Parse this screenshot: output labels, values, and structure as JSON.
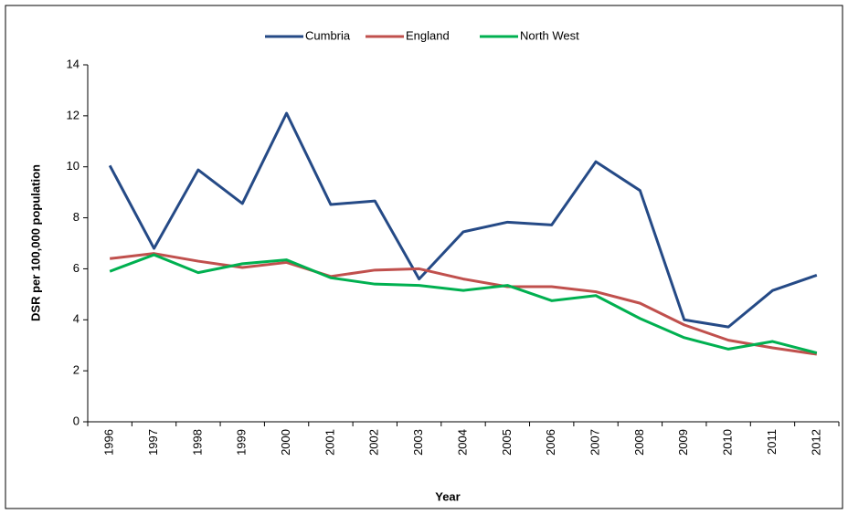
{
  "chart_data": {
    "type": "line",
    "x_label": "Year",
    "y_label": "DSR per 100,000 population",
    "categories": [
      "1996",
      "1997",
      "1998",
      "1999",
      "2000",
      "2001",
      "2002",
      "2003",
      "2004",
      "2005",
      "2006",
      "2007",
      "2008",
      "2009",
      "2010",
      "2011",
      "2012"
    ],
    "series": [
      {
        "name": "Cumbria",
        "color": "#254a86",
        "values": [
          10.05,
          6.8,
          9.88,
          8.56,
          12.1,
          8.52,
          8.66,
          5.6,
          7.45,
          7.83,
          7.72,
          10.2,
          9.07,
          4.0,
          3.72,
          5.15,
          5.75
        ]
      },
      {
        "name": "England",
        "color": "#c0504d",
        "values": [
          6.4,
          6.6,
          6.3,
          6.05,
          6.25,
          5.7,
          5.95,
          6.0,
          5.6,
          5.3,
          5.3,
          5.1,
          4.65,
          3.8,
          3.2,
          2.9,
          2.65
        ]
      },
      {
        "name": "North West",
        "color": "#00b050",
        "values": [
          5.9,
          6.55,
          5.85,
          6.2,
          6.35,
          5.65,
          5.4,
          5.35,
          5.15,
          5.35,
          4.75,
          4.95,
          4.05,
          3.3,
          2.85,
          3.15,
          2.7
        ]
      }
    ],
    "ylim": [
      0,
      14
    ],
    "yticks": [
      0,
      2,
      4,
      6,
      8,
      10,
      12,
      14
    ],
    "legend": "top",
    "grid": false
  }
}
